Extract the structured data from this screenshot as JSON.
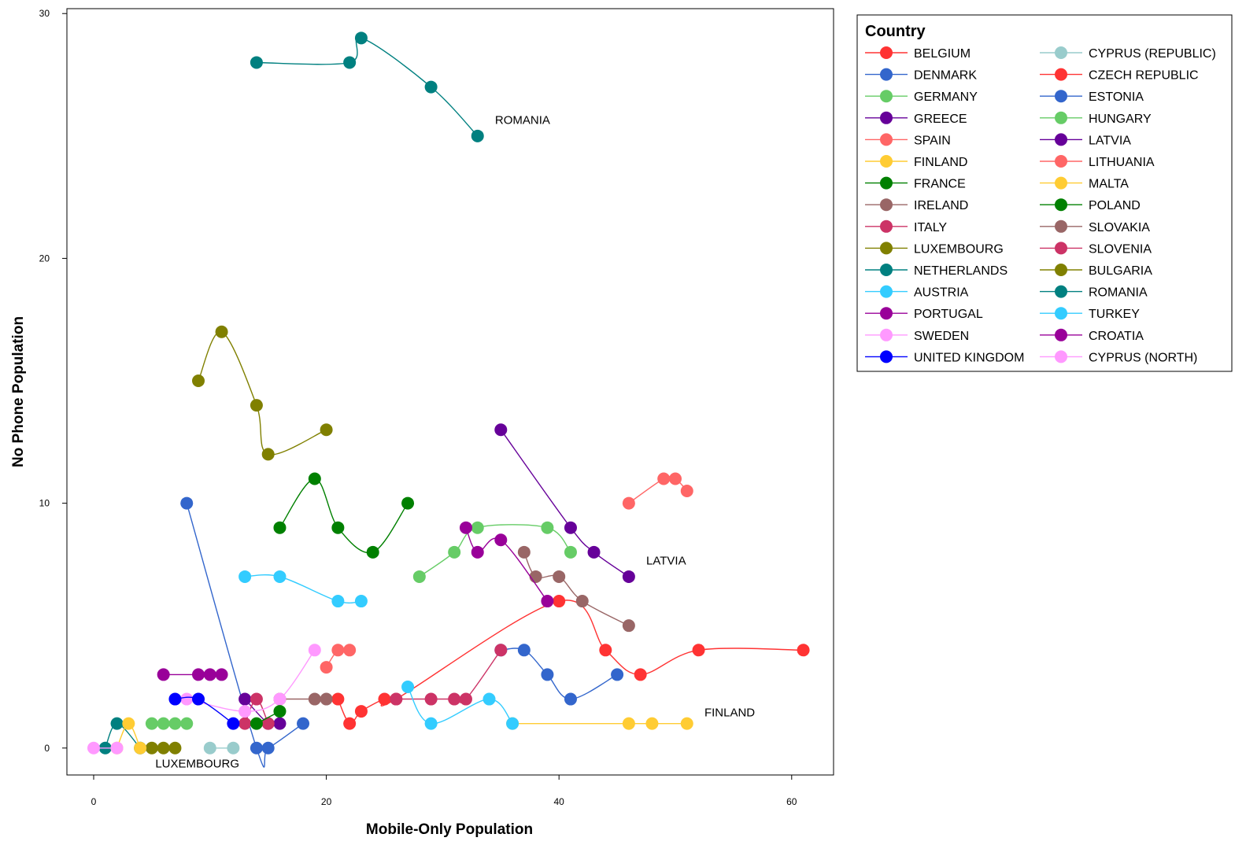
{
  "chart_data": {
    "type": "line",
    "title": "",
    "xlabel": "Mobile-Only Population",
    "ylabel": "No Phone Population",
    "xlim": [
      -2.3,
      63.6
    ],
    "ylim": [
      -1.1,
      30.2
    ],
    "xticks": [
      0,
      20,
      40,
      60
    ],
    "yticks": [
      0,
      10,
      20,
      30
    ],
    "grid": false,
    "legend_title": "Country",
    "legend_position": "right",
    "annotations": [
      {
        "text": "ROMANIA",
        "x": 34.5,
        "y": 25.5
      },
      {
        "text": "LATVIA",
        "x": 47.5,
        "y": 7.5
      },
      {
        "text": "FINLAND",
        "x": 52.5,
        "y": 1.3
      },
      {
        "text": "LUXEMBOURG",
        "x": 5.3,
        "y": -0.8
      }
    ],
    "series": [
      {
        "name": "BELGIUM",
        "color": "#ff3333",
        "points": [
          [
            21,
            2
          ],
          [
            22,
            1
          ],
          [
            23,
            1.5
          ],
          [
            25,
            2
          ],
          [
            26,
            2
          ],
          [
            40,
            6
          ],
          [
            44,
            4
          ],
          [
            47,
            3
          ],
          [
            52,
            4
          ],
          [
            61,
            4
          ]
        ]
      },
      {
        "name": "DENMARK",
        "color": "#3366cc",
        "points": [
          [
            8,
            10
          ],
          [
            14,
            0
          ],
          [
            15,
            0
          ],
          [
            18,
            1
          ]
        ]
      },
      {
        "name": "GERMANY",
        "color": "#66cc66",
        "points": [
          [
            5,
            1
          ],
          [
            6,
            1
          ],
          [
            7,
            1
          ],
          [
            8,
            1
          ]
        ]
      },
      {
        "name": "GREECE",
        "color": "#660099",
        "points": [
          [
            13,
            2
          ],
          [
            15,
            1
          ],
          [
            16,
            1
          ]
        ]
      },
      {
        "name": "SPAIN",
        "color": "#ff6666",
        "points": [
          [
            20,
            3.3
          ],
          [
            21,
            4
          ],
          [
            22,
            4
          ]
        ]
      },
      {
        "name": "FINLAND",
        "color": "#ffcc33",
        "points": [
          [
            36,
            1
          ],
          [
            46,
            1
          ],
          [
            48,
            1
          ],
          [
            51,
            1
          ]
        ]
      },
      {
        "name": "FRANCE",
        "color": "#008000",
        "points": [
          [
            16,
            9
          ],
          [
            19,
            11
          ],
          [
            21,
            9
          ],
          [
            24,
            8
          ],
          [
            27,
            10
          ]
        ]
      },
      {
        "name": "IRELAND",
        "color": "#996666",
        "points": [
          [
            16,
            2
          ],
          [
            19,
            2
          ],
          [
            20,
            2
          ]
        ]
      },
      {
        "name": "ITALY",
        "color": "#cc3366",
        "points": [
          [
            13,
            1
          ],
          [
            14,
            2
          ],
          [
            15,
            1
          ]
        ]
      },
      {
        "name": "LUXEMBOURG",
        "color": "#808000",
        "points": [
          [
            5,
            0
          ],
          [
            6,
            0
          ],
          [
            7,
            0
          ]
        ]
      },
      {
        "name": "NETHERLANDS",
        "color": "#008080",
        "points": [
          [
            1,
            0
          ],
          [
            2,
            1
          ],
          [
            4,
            0
          ]
        ]
      },
      {
        "name": "AUSTRIA",
        "color": "#33ccff",
        "points": [
          [
            13,
            7
          ],
          [
            16,
            7
          ],
          [
            21,
            6
          ],
          [
            23,
            6
          ]
        ]
      },
      {
        "name": "PORTUGAL",
        "color": "#990099",
        "points": [
          [
            6,
            3
          ],
          [
            9,
            3
          ],
          [
            10,
            3
          ],
          [
            11,
            3
          ]
        ]
      },
      {
        "name": "SWEDEN",
        "color": "#ff99ff",
        "points": [
          [
            8,
            2
          ],
          [
            13,
            1.5
          ],
          [
            16,
            2
          ],
          [
            19,
            4
          ]
        ]
      },
      {
        "name": "UNITED KINGDOM",
        "color": "#0000ff",
        "points": [
          [
            7,
            2
          ],
          [
            9,
            2
          ],
          [
            12,
            1
          ]
        ]
      },
      {
        "name": "CYPRUS (REPUBLIC)",
        "color": "#99cccc",
        "points": [
          [
            10,
            0
          ],
          [
            12,
            0
          ]
        ]
      },
      {
        "name": "CZECH REPUBLIC",
        "color": "#ff3333",
        "points": []
      },
      {
        "name": "ESTONIA",
        "color": "#3366cc",
        "points": [
          [
            35,
            4
          ],
          [
            37,
            4
          ],
          [
            39,
            3
          ],
          [
            41,
            2
          ],
          [
            45,
            3
          ]
        ]
      },
      {
        "name": "HUNGARY",
        "color": "#66cc66",
        "points": [
          [
            28,
            7
          ],
          [
            31,
            8
          ],
          [
            33,
            9
          ],
          [
            39,
            9
          ],
          [
            41,
            8
          ]
        ]
      },
      {
        "name": "LATVIA",
        "color": "#660099",
        "points": [
          [
            35,
            13
          ],
          [
            41,
            9
          ],
          [
            43,
            8
          ],
          [
            46,
            7
          ]
        ]
      },
      {
        "name": "LITHUANIA",
        "color": "#ff6666",
        "points": [
          [
            46,
            10
          ],
          [
            49,
            11
          ],
          [
            50,
            11
          ],
          [
            51,
            10.5
          ]
        ]
      },
      {
        "name": "MALTA",
        "color": "#ffcc33",
        "points": [
          [
            2,
            0
          ],
          [
            3,
            1
          ],
          [
            4,
            0
          ]
        ]
      },
      {
        "name": "POLAND",
        "color": "#008000",
        "points": [
          [
            14,
            1
          ],
          [
            16,
            1.5
          ]
        ]
      },
      {
        "name": "SLOVAKIA",
        "color": "#996666",
        "points": [
          [
            37,
            8
          ],
          [
            38,
            7
          ],
          [
            40,
            7
          ],
          [
            42,
            6
          ],
          [
            46,
            5
          ]
        ]
      },
      {
        "name": "SLOVENIA",
        "color": "#cc3366",
        "points": [
          [
            26,
            2
          ],
          [
            29,
            2
          ],
          [
            31,
            2
          ],
          [
            32,
            2
          ],
          [
            35,
            4
          ]
        ]
      },
      {
        "name": "BULGARIA",
        "color": "#808000",
        "points": [
          [
            9,
            15
          ],
          [
            11,
            17
          ],
          [
            14,
            14
          ],
          [
            15,
            12
          ],
          [
            20,
            13
          ]
        ]
      },
      {
        "name": "ROMANIA",
        "color": "#008080",
        "points": [
          [
            14,
            28
          ],
          [
            22,
            28
          ],
          [
            23,
            29
          ],
          [
            29,
            27
          ],
          [
            33,
            25
          ]
        ]
      },
      {
        "name": "TURKEY",
        "color": "#33ccff",
        "points": [
          [
            27,
            2.5
          ],
          [
            29,
            1
          ],
          [
            34,
            2
          ],
          [
            36,
            1
          ]
        ]
      },
      {
        "name": "CROATIA",
        "color": "#990099",
        "points": [
          [
            32,
            9
          ],
          [
            33,
            8
          ],
          [
            35,
            8.5
          ],
          [
            39,
            6
          ]
        ]
      },
      {
        "name": "CYPRUS (NORTH)",
        "color": "#ff99ff",
        "points": [
          [
            0,
            0
          ],
          [
            2,
            0
          ]
        ]
      }
    ]
  }
}
